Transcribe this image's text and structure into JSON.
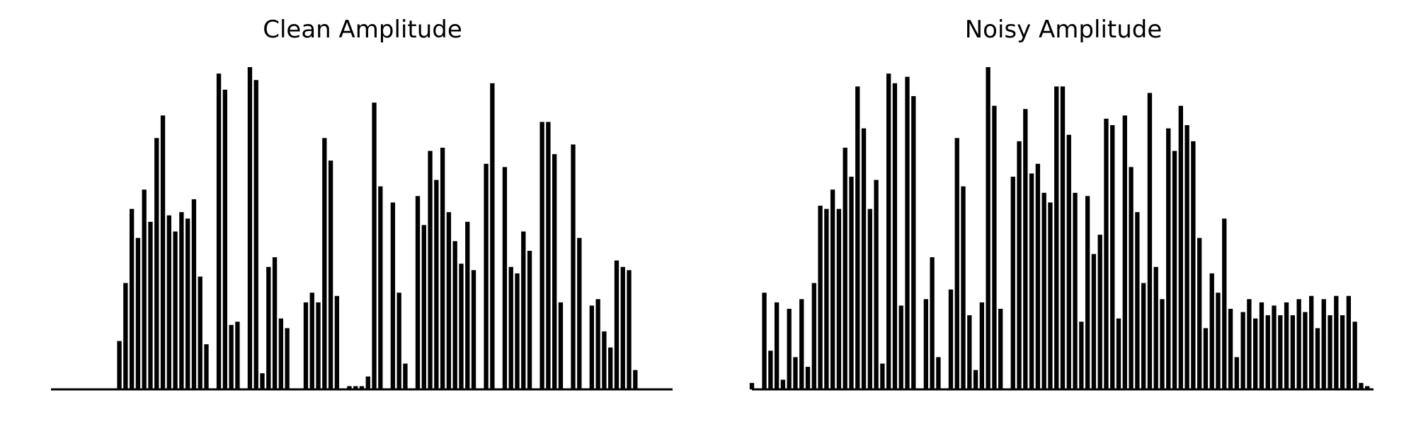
{
  "chart_data": [
    {
      "type": "area",
      "title": "Clean Amplitude",
      "xlabel": "",
      "ylabel": "",
      "axes_visible": false,
      "grid": false,
      "color": "#000000",
      "ylim": [
        0,
        1
      ],
      "x": [
        0.0,
        0.01,
        0.02,
        0.03,
        0.04,
        0.05,
        0.06,
        0.07,
        0.08,
        0.09,
        0.1,
        0.11,
        0.12,
        0.13,
        0.14,
        0.15,
        0.16,
        0.17,
        0.18,
        0.19,
        0.2,
        0.21,
        0.22,
        0.23,
        0.24,
        0.25,
        0.26,
        0.27,
        0.28,
        0.29,
        0.3,
        0.31,
        0.32,
        0.33,
        0.34,
        0.35,
        0.36,
        0.37,
        0.38,
        0.39,
        0.4,
        0.41,
        0.42,
        0.43,
        0.44,
        0.45,
        0.46,
        0.47,
        0.48,
        0.49,
        0.5,
        0.51,
        0.52,
        0.53,
        0.54,
        0.55,
        0.56,
        0.57,
        0.58,
        0.59,
        0.6,
        0.61,
        0.62,
        0.63,
        0.64,
        0.65,
        0.66,
        0.67,
        0.68,
        0.69,
        0.7,
        0.71,
        0.72,
        0.73,
        0.74,
        0.75,
        0.76,
        0.77,
        0.78,
        0.79,
        0.8,
        0.81,
        0.82,
        0.83,
        0.84,
        0.85,
        0.86,
        0.87,
        0.88,
        0.89,
        0.9,
        0.91,
        0.92,
        0.93,
        0.94,
        0.95,
        0.96,
        0.97,
        0.98,
        0.99,
        1.0
      ],
      "values": [
        0.0,
        0.0,
        0.0,
        0.0,
        0.0,
        0.0,
        0.0,
        0.0,
        0.0,
        0.0,
        0.0,
        0.15,
        0.33,
        0.56,
        0.47,
        0.62,
        0.52,
        0.78,
        0.85,
        0.54,
        0.49,
        0.55,
        0.53,
        0.59,
        0.35,
        0.14,
        0.0,
        0.98,
        0.93,
        0.2,
        0.21,
        0.0,
        1.0,
        0.96,
        0.05,
        0.38,
        0.41,
        0.22,
        0.19,
        0.0,
        0.0,
        0.27,
        0.3,
        0.27,
        0.78,
        0.71,
        0.29,
        0.0,
        0.01,
        0.01,
        0.01,
        0.04,
        0.89,
        0.63,
        0.0,
        0.58,
        0.3,
        0.08,
        0.0,
        0.6,
        0.51,
        0.74,
        0.65,
        0.75,
        0.55,
        0.46,
        0.39,
        0.52,
        0.37,
        0.0,
        0.7,
        0.95,
        0.0,
        0.69,
        0.38,
        0.36,
        0.49,
        0.43,
        0.0,
        0.83,
        0.83,
        0.73,
        0.27,
        0.0,
        0.76,
        0.47,
        0.0,
        0.26,
        0.28,
        0.18,
        0.13,
        0.4,
        0.38,
        0.37,
        0.06,
        0.0,
        0.0,
        0.0,
        0.0,
        0.0,
        0.0
      ]
    },
    {
      "type": "area",
      "title": "Noisy Amplitude",
      "xlabel": "",
      "ylabel": "",
      "axes_visible": false,
      "grid": false,
      "color": "#000000",
      "ylim": [
        0,
        1
      ],
      "x": [
        0.0,
        0.01,
        0.02,
        0.03,
        0.04,
        0.05,
        0.06,
        0.07,
        0.08,
        0.09,
        0.1,
        0.11,
        0.12,
        0.13,
        0.14,
        0.15,
        0.16,
        0.17,
        0.18,
        0.19,
        0.2,
        0.21,
        0.22,
        0.23,
        0.24,
        0.25,
        0.26,
        0.27,
        0.28,
        0.29,
        0.3,
        0.31,
        0.32,
        0.33,
        0.34,
        0.35,
        0.36,
        0.37,
        0.38,
        0.39,
        0.4,
        0.41,
        0.42,
        0.43,
        0.44,
        0.45,
        0.46,
        0.47,
        0.48,
        0.49,
        0.5,
        0.51,
        0.52,
        0.53,
        0.54,
        0.55,
        0.56,
        0.57,
        0.58,
        0.59,
        0.6,
        0.61,
        0.62,
        0.63,
        0.64,
        0.65,
        0.66,
        0.67,
        0.68,
        0.69,
        0.7,
        0.71,
        0.72,
        0.73,
        0.74,
        0.75,
        0.76,
        0.77,
        0.78,
        0.79,
        0.8,
        0.81,
        0.82,
        0.83,
        0.84,
        0.85,
        0.86,
        0.87,
        0.88,
        0.89,
        0.9,
        0.91,
        0.92,
        0.93,
        0.94,
        0.95,
        0.96,
        0.97,
        0.98,
        0.99,
        1.0
      ],
      "values": [
        0.02,
        0.0,
        0.3,
        0.12,
        0.27,
        0.03,
        0.25,
        0.1,
        0.28,
        0.07,
        0.33,
        0.57,
        0.56,
        0.62,
        0.56,
        0.75,
        0.66,
        0.94,
        0.81,
        0.56,
        0.65,
        0.08,
        0.98,
        0.95,
        0.26,
        0.97,
        0.91,
        0.0,
        0.28,
        0.41,
        0.1,
        0.0,
        0.31,
        0.78,
        0.63,
        0.23,
        0.06,
        0.27,
        1.0,
        0.88,
        0.25,
        0.0,
        0.66,
        0.77,
        0.87,
        0.67,
        0.7,
        0.61,
        0.58,
        0.94,
        0.94,
        0.79,
        0.61,
        0.21,
        0.6,
        0.42,
        0.48,
        0.84,
        0.82,
        0.22,
        0.85,
        0.69,
        0.55,
        0.33,
        0.92,
        0.38,
        0.28,
        0.81,
        0.74,
        0.88,
        0.82,
        0.77,
        0.47,
        0.19,
        0.36,
        0.3,
        0.53,
        0.25,
        0.1,
        0.24,
        0.28,
        0.22,
        0.27,
        0.23,
        0.26,
        0.23,
        0.27,
        0.23,
        0.28,
        0.24,
        0.29,
        0.19,
        0.28,
        0.23,
        0.29,
        0.23,
        0.29,
        0.21,
        0.02,
        0.01,
        0.0
      ]
    }
  ]
}
